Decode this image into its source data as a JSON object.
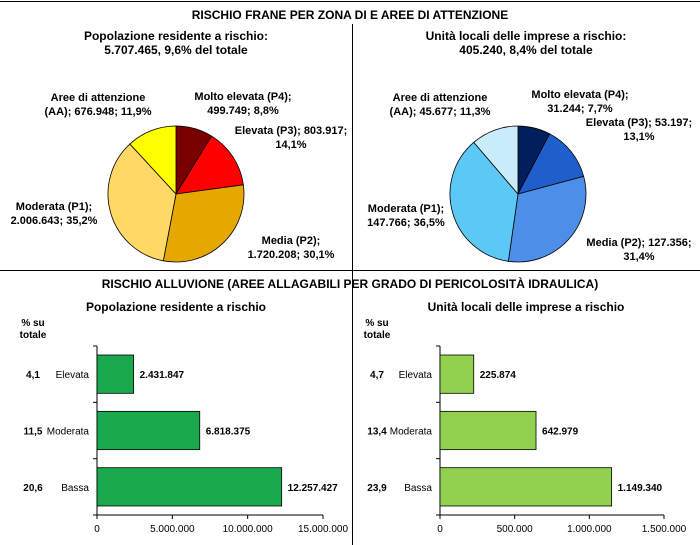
{
  "top_title": "RISCHIO FRANE PER ZONA DI E AREE DI ATTENZIONE",
  "bottom_title": "RISCHIO ALLUVIONE (AREE ALLAGABILI PER GRADO DI PERICOLOSITÀ IDRAULICA)",
  "colors": {
    "pie_left": [
      "#7a0000",
      "#ff0000",
      "#e6a800",
      "#ffd966",
      "#ffff00"
    ],
    "pie_right": [
      "#001f5c",
      "#1f5fcc",
      "#4d8fe8",
      "#5cc8f5",
      "#c9ecfb"
    ],
    "bar_left": "#1aa84d",
    "bar_right": "#92d050"
  },
  "chart_data": [
    {
      "type": "pie",
      "title": "Popolazione residente a rischio:",
      "subtitle": "5.707.465, 9,6% del totale",
      "slices": [
        {
          "label_lines": [
            "Molto elevata (P4);",
            "499.749; 8,8%"
          ],
          "value": 499749,
          "percent": 8.8
        },
        {
          "label_lines": [
            "Elevata (P3); 803.917;",
            "14,1%"
          ],
          "value": 803917,
          "percent": 14.1
        },
        {
          "label_lines": [
            "Media (P2);",
            "1.720.208; 30,1%"
          ],
          "value": 1720208,
          "percent": 30.1
        },
        {
          "label_lines": [
            "Moderata (P1);",
            "2.006.643; 35,2%"
          ],
          "value": 2006643,
          "percent": 35.2
        },
        {
          "label_lines": [
            "Aree di attenzione",
            "(AA); 676.948; 11,9%"
          ],
          "value": 676948,
          "percent": 11.9
        }
      ]
    },
    {
      "type": "pie",
      "title": "Unità locali delle imprese a rischio:",
      "subtitle": "405.240, 8,4% del totale",
      "slices": [
        {
          "label_lines": [
            "Molto elevata (P4);",
            "31.244; 7,7%"
          ],
          "value": 31244,
          "percent": 7.7
        },
        {
          "label_lines": [
            "Elevata (P3); 53.197;",
            "13,1%"
          ],
          "value": 53197,
          "percent": 13.1
        },
        {
          "label_lines": [
            "Media (P2); 127.356;",
            "31,4%"
          ],
          "value": 127356,
          "percent": 31.4
        },
        {
          "label_lines": [
            "Moderata (P1);",
            "147.766; 36,5%"
          ],
          "value": 147766,
          "percent": 36.5
        },
        {
          "label_lines": [
            "Aree di attenzione",
            "(AA); 45.677; 11,3%"
          ],
          "value": 45677,
          "percent": 11.3
        }
      ]
    },
    {
      "type": "bar",
      "orientation": "horizontal",
      "title": "Popolazione residente a rischio",
      "pct_header": [
        "% su",
        "totale"
      ],
      "categories": [
        "Elevata",
        "Moderata",
        "Bassa"
      ],
      "pct": [
        "4,1",
        "11,5",
        "20,6"
      ],
      "values": [
        2431847,
        6818375,
        12257427
      ],
      "value_labels": [
        "2.431.847",
        "6.818.375",
        "12.257.427"
      ],
      "xlim": [
        0,
        15000000
      ],
      "xticks": [
        0,
        5000000,
        10000000,
        15000000
      ],
      "xtick_labels": [
        "0",
        "5.000.000",
        "10.000.000",
        "15.000.000"
      ]
    },
    {
      "type": "bar",
      "orientation": "horizontal",
      "title": "Unità locali delle imprese a rischio",
      "pct_header": [
        "% su",
        "totale"
      ],
      "categories": [
        "Elevata",
        "Moderata",
        "Bassa"
      ],
      "pct": [
        "4,7",
        "13,4",
        "23,9"
      ],
      "values": [
        225874,
        642979,
        1149340
      ],
      "value_labels": [
        "225.874",
        "642.979",
        "1.149.340"
      ],
      "xlim": [
        0,
        1500000
      ],
      "xticks": [
        0,
        500000,
        1000000,
        1500000
      ],
      "xtick_labels": [
        "0",
        "500.000",
        "1.000.000",
        "1.500.000"
      ]
    }
  ]
}
